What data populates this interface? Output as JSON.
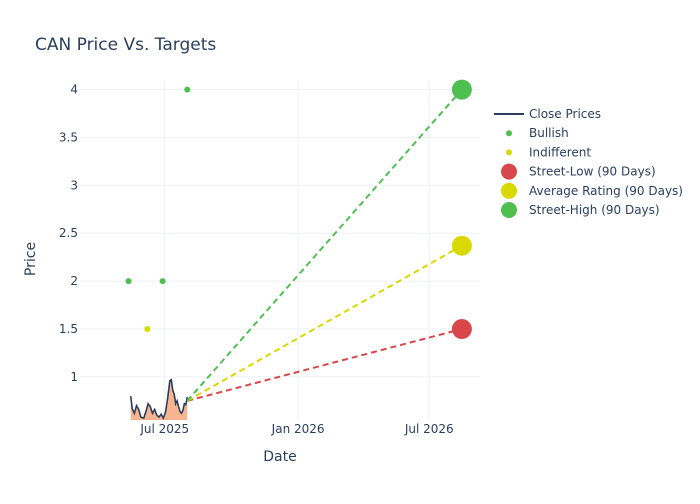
{
  "colors": {
    "title": "#2a3f5f",
    "axis_text": "#2a3f5f",
    "grid": "#eef0f4",
    "close_line": "#2a3f5f",
    "close_fill": "#f6a77c",
    "bullish": "#4fbf4f",
    "indifferent": "#d9d900",
    "street_low": "#d9474b",
    "average": "#d9d900",
    "street_high": "#4fbf4f"
  },
  "chart_data": {
    "type": "line",
    "title": "CAN Price Vs. Targets",
    "xlabel": "Date",
    "ylabel": "Price",
    "xlim": [
      "2025-03-06",
      "2026-09-09"
    ],
    "ylim": [
      0.55,
      4.1
    ],
    "x_ticks": [
      {
        "date": "2025-07-01",
        "label": "Jul 2025"
      },
      {
        "date": "2026-01-01",
        "label": "Jan 2026"
      },
      {
        "date": "2026-07-01",
        "label": "Jul 2026"
      }
    ],
    "y_ticks": [
      1,
      1.5,
      2,
      2.5,
      3,
      3.5,
      4
    ],
    "grid": true,
    "legend_position": "right",
    "series": [
      {
        "name": "Close Prices",
        "kind": "line",
        "points": [
          {
            "x": "2025-05-15",
            "y": 0.8
          },
          {
            "x": "2025-05-17",
            "y": 0.67
          },
          {
            "x": "2025-05-20",
            "y": 0.62
          },
          {
            "x": "2025-05-23",
            "y": 0.7
          },
          {
            "x": "2025-05-26",
            "y": 0.66
          },
          {
            "x": "2025-05-29",
            "y": 0.58
          },
          {
            "x": "2025-06-02",
            "y": 0.57
          },
          {
            "x": "2025-06-05",
            "y": 0.64
          },
          {
            "x": "2025-06-08",
            "y": 0.72
          },
          {
            "x": "2025-06-11",
            "y": 0.69
          },
          {
            "x": "2025-06-14",
            "y": 0.62
          },
          {
            "x": "2025-06-17",
            "y": 0.66
          },
          {
            "x": "2025-06-20",
            "y": 0.6
          },
          {
            "x": "2025-06-23",
            "y": 0.58
          },
          {
            "x": "2025-06-26",
            "y": 0.61
          },
          {
            "x": "2025-06-29",
            "y": 0.57
          },
          {
            "x": "2025-07-02",
            "y": 0.63
          },
          {
            "x": "2025-07-05",
            "y": 0.78
          },
          {
            "x": "2025-07-08",
            "y": 0.96
          },
          {
            "x": "2025-07-10",
            "y": 0.97
          },
          {
            "x": "2025-07-12",
            "y": 0.86
          },
          {
            "x": "2025-07-14",
            "y": 0.82
          },
          {
            "x": "2025-07-16",
            "y": 0.72
          },
          {
            "x": "2025-07-18",
            "y": 0.75
          },
          {
            "x": "2025-07-20",
            "y": 0.69
          },
          {
            "x": "2025-07-22",
            "y": 0.64
          },
          {
            "x": "2025-07-24",
            "y": 0.62
          },
          {
            "x": "2025-07-26",
            "y": 0.65
          },
          {
            "x": "2025-07-28",
            "y": 0.72
          },
          {
            "x": "2025-07-30",
            "y": 0.71
          },
          {
            "x": "2025-08-01",
            "y": 0.79
          }
        ]
      },
      {
        "name": "Bullish",
        "kind": "markers",
        "color_key": "bullish",
        "radius": 3,
        "points": [
          {
            "x": "2025-05-12",
            "y": 2.0
          },
          {
            "x": "2025-06-28",
            "y": 2.0
          },
          {
            "x": "2025-08-01",
            "y": 4.0
          }
        ]
      },
      {
        "name": "Indifferent",
        "kind": "markers",
        "color_key": "indifferent",
        "radius": 3,
        "points": [
          {
            "x": "2025-06-07",
            "y": 1.5
          }
        ]
      },
      {
        "name": "Street-Low (90 Days)",
        "kind": "target",
        "color_key": "street_low",
        "radius": 10,
        "from": {
          "x": "2025-08-01",
          "y": 0.75
        },
        "to": {
          "x": "2026-08-15",
          "y": 1.5
        }
      },
      {
        "name": "Average Rating (90 Days)",
        "kind": "target",
        "color_key": "average",
        "radius": 10,
        "from": {
          "x": "2025-08-01",
          "y": 0.75
        },
        "to": {
          "x": "2026-08-15",
          "y": 2.37
        }
      },
      {
        "name": "Street-High (90 Days)",
        "kind": "target",
        "color_key": "street_high",
        "radius": 10,
        "from": {
          "x": "2025-08-01",
          "y": 0.75
        },
        "to": {
          "x": "2026-08-15",
          "y": 4.0
        }
      }
    ]
  }
}
